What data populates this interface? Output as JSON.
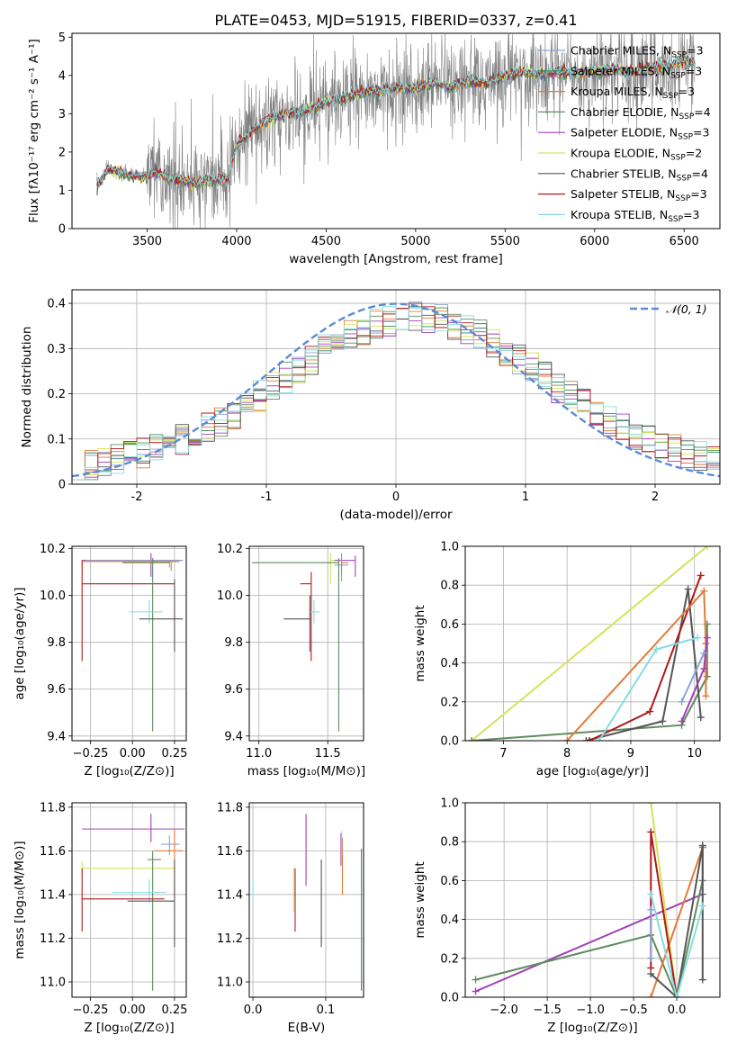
{
  "figure": {
    "title": "PLATE=0453, MJD=51915, FIBERID=0337, z=0.41"
  },
  "colors": {
    "Chabrier MILES": "#8aa4d6",
    "Salpeter MILES": "#2e8b57",
    "Kroupa MILES": "#e07b39",
    "Chabrier ELODIE": "#5e8c5e",
    "Salpeter ELODIE": "#a23fb8",
    "Kroupa ELODIE": "#d4e35a",
    "Chabrier STELIB": "#555555",
    "Salpeter STELIB": "#b01a1a",
    "Kroupa STELIB": "#86dce0",
    "data": "#808080",
    "gauss": "#5b8bd6"
  },
  "chart_data": [
    {
      "id": "spectrum",
      "type": "line",
      "xlabel": "wavelength [Angstrom, rest frame]",
      "ylabel": "Flux [fλ10⁻¹⁷ erg cm⁻² s⁻¹ A⁻¹]",
      "xlim": [
        3080,
        6700
      ],
      "ylim": [
        0,
        5.1
      ],
      "xticks": [
        3500,
        4000,
        4500,
        5000,
        5500,
        6000,
        6500
      ],
      "yticks": [
        0,
        1,
        2,
        3,
        4,
        5
      ],
      "grid": false,
      "legend_position": "top-right",
      "legend": [
        {
          "label": "Chabrier MILES, N",
          "sub": "SSP",
          "tail": "=3",
          "model": "Chabrier MILES"
        },
        {
          "label": "Salpeter MILES, N",
          "sub": "SSP",
          "tail": "=3",
          "model": "Salpeter MILES"
        },
        {
          "label": "Kroupa MILES, N",
          "sub": "SSP",
          "tail": "=3",
          "model": "Kroupa MILES"
        },
        {
          "label": "Chabrier ELODIE, N",
          "sub": "SSP",
          "tail": "=4",
          "model": "Chabrier ELODIE"
        },
        {
          "label": "Salpeter ELODIE, N",
          "sub": "SSP",
          "tail": "=3",
          "model": "Salpeter ELODIE"
        },
        {
          "label": "Kroupa ELODIE, N",
          "sub": "SSP",
          "tail": "=2",
          "model": "Kroupa ELODIE"
        },
        {
          "label": "Chabrier STELIB, N",
          "sub": "SSP",
          "tail": "=4",
          "model": "Chabrier STELIB"
        },
        {
          "label": "Salpeter STELIB, N",
          "sub": "SSP",
          "tail": "=3",
          "model": "Salpeter STELIB"
        },
        {
          "label": "Kroupa STELIB, N",
          "sub": "SSP",
          "tail": "=3",
          "model": "Kroupa STELIB"
        }
      ],
      "model_continuum": {
        "x": [
          3220,
          3280,
          3350,
          3450,
          3550,
          3650,
          3750,
          3850,
          3950,
          4000,
          4100,
          4200,
          4300,
          4400,
          4500,
          4600,
          4700,
          4800,
          4900,
          5000,
          5100,
          5200,
          5300,
          5400,
          5500,
          5600,
          5700,
          5800,
          5900,
          6000,
          6100,
          6200,
          6300,
          6400,
          6500
        ],
        "y": [
          1.1,
          1.55,
          1.45,
          1.35,
          1.45,
          1.3,
          1.2,
          1.25,
          1.3,
          2.2,
          2.6,
          2.9,
          3.0,
          3.1,
          3.3,
          3.4,
          3.55,
          3.6,
          3.7,
          3.65,
          3.8,
          3.7,
          3.85,
          3.8,
          4.0,
          4.1,
          4.0,
          4.1,
          4.05,
          4.1,
          4.15,
          4.1,
          4.2,
          4.25,
          4.35
        ]
      },
      "data_start": 3220,
      "data_end": 6560
    },
    {
      "id": "residuals",
      "type": "histogram",
      "xlabel": "(data-model)/error",
      "ylabel": "Normed distribution",
      "xlim": [
        -2.5,
        2.5
      ],
      "ylim": [
        0,
        0.43
      ],
      "xticks": [
        -2,
        -1,
        0,
        1,
        2
      ],
      "yticks": [
        0.0,
        0.1,
        0.2,
        0.3,
        0.4
      ],
      "grid": true,
      "legend_position": "top-right",
      "legend": [
        {
          "label": "𝒩(0, 1)",
          "model": "gauss"
        }
      ],
      "bins": {
        "start": -2.5,
        "width": 0.1,
        "count": 50
      }
    },
    {
      "id": "age_vs_Z",
      "type": "errorbar",
      "xlabel": "Z [log₁₀(Z/Z⊙)]",
      "ylabel": "age  [log₁₀(age/yr)]",
      "xlim": [
        -0.36,
        0.32
      ],
      "ylim": [
        9.38,
        10.21
      ],
      "xticks": [
        -0.25,
        0.0,
        0.25
      ],
      "xticklabels": [
        "−0.25",
        "0.00",
        "0.25"
      ],
      "yticks": [
        9.4,
        9.6,
        9.8,
        10.0,
        10.2
      ],
      "yticklabels": [
        "9.4",
        "9.6",
        "9.8",
        "10.0",
        "10.2"
      ],
      "grid": true,
      "points": [
        {
          "model": "Kroupa ELODIE",
          "x": -0.3,
          "xerr": [
            0.0,
            0.58
          ],
          "y": 10.15,
          "yerr": [
            0.05,
            0.0
          ]
        },
        {
          "model": "Salpeter ELODIE",
          "x": 0.11,
          "xerr": [
            0.41,
            0.19
          ],
          "y": 10.15,
          "yerr": [
            0.07,
            0.03
          ]
        },
        {
          "model": "Chabrier MILES",
          "x": 0.22,
          "xerr": [
            0.5,
            0.08
          ],
          "y": 10.15,
          "yerr": [
            0.03,
            0.0
          ]
        },
        {
          "model": "Kroupa MILES",
          "x": 0.23,
          "xerr": [
            0.53,
            0.05
          ],
          "y": 10.145,
          "yerr": [
            0.04,
            0.0
          ]
        },
        {
          "model": "Salpeter STELIB",
          "x": -0.3,
          "xerr": [
            0.0,
            0.55
          ],
          "y": 10.05,
          "yerr": [
            0.33,
            0.1
          ]
        },
        {
          "model": "Chabrier ELODIE",
          "x": 0.12,
          "xerr": [
            0.18,
            0.1
          ],
          "y": 10.14,
          "yerr": [
            0.72,
            0.02
          ]
        },
        {
          "model": "Kroupa STELIB",
          "x": 0.1,
          "xerr": [
            0.12,
            0.08
          ],
          "y": 9.93,
          "yerr": [
            0.05,
            0.05
          ]
        },
        {
          "model": "Chabrier STELIB",
          "x": 0.25,
          "xerr": [
            0.21,
            0.05
          ],
          "y": 9.9,
          "yerr": [
            0.14,
            0.17
          ]
        }
      ]
    },
    {
      "id": "age_vs_mass",
      "type": "errorbar",
      "xlabel": "mass [log₁₀(M/M⊙)]",
      "ylabel": "",
      "xlim": [
        10.93,
        11.76
      ],
      "ylim": [
        9.38,
        10.21
      ],
      "xticks": [
        11.0,
        11.5
      ],
      "xticklabels": [
        "11.0",
        "11.5"
      ],
      "yticks": [
        9.4,
        9.6,
        9.8,
        10.0,
        10.2
      ],
      "yticklabels": [
        "9.4",
        "9.6",
        "9.8",
        "10.0",
        "10.2"
      ],
      "grid": true,
      "points": [
        {
          "model": "Kroupa ELODIE",
          "x": 11.52,
          "xerr": [
            0.0,
            0.06
          ],
          "y": 10.15,
          "yerr": [
            0.1,
            0.03
          ]
        },
        {
          "model": "Salpeter ELODIE",
          "x": 11.7,
          "xerr": [
            0.15,
            0.0
          ],
          "y": 10.15,
          "yerr": [
            0.07,
            0.02
          ]
        },
        {
          "model": "Chabrier MILES",
          "x": 11.6,
          "xerr": [
            0.05,
            0.05
          ],
          "y": 10.13,
          "yerr": [
            0.07,
            0.02
          ]
        },
        {
          "model": "Kroupa MILES",
          "x": 11.6,
          "xerr": [
            0.0,
            0.05
          ],
          "y": 10.14,
          "yerr": [
            0.05,
            0.04
          ]
        },
        {
          "model": "Salpeter STELIB",
          "x": 11.38,
          "xerr": [
            0.08,
            0.0
          ],
          "y": 10.05,
          "yerr": [
            0.33,
            0.05
          ]
        },
        {
          "model": "Chabrier ELODIE",
          "x": 11.58,
          "xerr": [
            0.63,
            0.0
          ],
          "y": 10.14,
          "yerr": [
            0.72,
            0.02
          ]
        },
        {
          "model": "Kroupa STELIB",
          "x": 11.4,
          "xerr": [
            0.03,
            0.04
          ],
          "y": 9.93,
          "yerr": [
            0.05,
            0.05
          ]
        },
        {
          "model": "Chabrier STELIB",
          "x": 11.37,
          "xerr": [
            0.19,
            0.0
          ],
          "y": 9.9,
          "yerr": [
            0.14,
            0.1
          ]
        }
      ]
    },
    {
      "id": "weight_vs_age",
      "type": "line",
      "xlabel": "age  [log₁₀(age/yr)]",
      "ylabel": "mass weight",
      "xlim": [
        6.4,
        10.4
      ],
      "ylim": [
        0.0,
        1.0
      ],
      "xticks": [
        7,
        8,
        9,
        10
      ],
      "xticklabels": [
        "7",
        "8",
        "9",
        "10"
      ],
      "yticks": [
        0.0,
        0.2,
        0.4,
        0.6,
        0.8,
        1.0
      ],
      "yticklabels": [
        "0.0",
        "0.2",
        "0.4",
        "0.6",
        "0.8",
        "1.0"
      ],
      "grid": true,
      "series": [
        {
          "model": "Kroupa ELODIE",
          "x": [
            6.5,
            10.2
          ],
          "y": [
            0.0,
            1.0
          ]
        },
        {
          "model": "Chabrier ELODIE",
          "x": [
            6.5,
            9.8,
            10.2,
            10.2
          ],
          "y": [
            0.0,
            0.08,
            0.33,
            0.6
          ]
        },
        {
          "model": "Chabrier STELIB",
          "x": [
            8.3,
            9.5,
            9.9,
            10.1
          ],
          "y": [
            0.0,
            0.1,
            0.78,
            0.12
          ]
        },
        {
          "model": "Salpeter STELIB",
          "x": [
            8.35,
            9.3,
            10.1
          ],
          "y": [
            0.0,
            0.15,
            0.85
          ]
        },
        {
          "model": "Kroupa MILES",
          "x": [
            8.0,
            10.15,
            10.18,
            10.18
          ],
          "y": [
            0.0,
            0.77,
            0.5,
            0.23
          ]
        },
        {
          "model": "Kroupa STELIB",
          "x": [
            8.5,
            9.4,
            10.05
          ],
          "y": [
            0.0,
            0.47,
            0.53
          ]
        },
        {
          "model": "Salpeter ELODIE",
          "x": [
            9.8,
            10.15,
            10.2
          ],
          "y": [
            0.1,
            0.37,
            0.53
          ]
        },
        {
          "model": "Chabrier MILES",
          "x": [
            9.8,
            10.15
          ],
          "y": [
            0.2,
            0.45
          ]
        }
      ]
    },
    {
      "id": "mass_vs_Z",
      "type": "errorbar",
      "xlabel": "Z [log₁₀(Z/Z⊙)]",
      "ylabel": "mass [log₁₀(M/M⊙)]",
      "xlim": [
        -0.36,
        0.32
      ],
      "ylim": [
        10.93,
        11.82
      ],
      "xticks": [
        -0.25,
        0.0,
        0.25
      ],
      "xticklabels": [
        "−0.25",
        "0.00",
        "0.25"
      ],
      "yticks": [
        11.0,
        11.2,
        11.4,
        11.6,
        11.8
      ],
      "yticklabels": [
        "11.0",
        "11.2",
        "11.4",
        "11.6",
        "11.8"
      ],
      "grid": true,
      "points": [
        {
          "model": "Salpeter ELODIE",
          "x": 0.11,
          "xerr": [
            0.41,
            0.2
          ],
          "y": 11.7,
          "yerr": [
            0.06,
            0.07
          ]
        },
        {
          "model": "Chabrier MILES",
          "x": 0.22,
          "xerr": [
            0.05,
            0.06
          ],
          "y": 11.63,
          "yerr": [
            0.05,
            0.04
          ]
        },
        {
          "model": "Kroupa MILES",
          "x": 0.25,
          "xerr": [
            0.12,
            0.05
          ],
          "y": 11.6,
          "yerr": [
            0.22,
            0.1
          ]
        },
        {
          "model": "Kroupa ELODIE",
          "x": -0.3,
          "xerr": [
            0.0,
            0.55
          ],
          "y": 11.52,
          "yerr": [
            0.03,
            0.03
          ]
        },
        {
          "model": "Chabrier ELODIE",
          "x": 0.12,
          "xerr": [
            0.03,
            0.05
          ],
          "y": 11.56,
          "yerr": [
            0.6,
            0.04
          ]
        },
        {
          "model": "Kroupa STELIB",
          "x": 0.1,
          "xerr": [
            0.22,
            0.1
          ],
          "y": 11.41,
          "yerr": [
            0.05,
            0.06
          ]
        },
        {
          "model": "Salpeter STELIB",
          "x": -0.3,
          "xerr": [
            0.0,
            0.49
          ],
          "y": 11.38,
          "yerr": [
            0.15,
            0.14
          ]
        },
        {
          "model": "Chabrier STELIB",
          "x": 0.25,
          "xerr": [
            0.28,
            0.0
          ],
          "y": 11.37,
          "yerr": [
            0.21,
            0.19
          ]
        }
      ]
    },
    {
      "id": "mass_vs_EBV",
      "type": "errorbar",
      "xlabel": "E(B-V)",
      "ylabel": "",
      "xlim": [
        -0.005,
        0.152
      ],
      "ylim": [
        10.93,
        11.82
      ],
      "xticks": [
        0.0,
        0.1
      ],
      "xticklabels": [
        "0.0",
        "0.1"
      ],
      "yticks": [
        11.0,
        11.2,
        11.4,
        11.6,
        11.8
      ],
      "yticklabels": [
        "11.0",
        "11.2",
        "11.4",
        "11.6",
        "11.8"
      ],
      "grid": true,
      "points": [
        {
          "model": "Kroupa STELIB",
          "x": 0.0,
          "xerr": [
            0.0,
            0.0
          ],
          "y": 11.42,
          "yerr": [
            0.06,
            0.04
          ]
        },
        {
          "model": "Kroupa ELODIE",
          "x": 0.056,
          "xerr": [
            0.0,
            0.0
          ],
          "y": 11.4,
          "yerr": [
            0.08,
            0.12
          ]
        },
        {
          "model": "Salpeter STELIB",
          "x": 0.058,
          "xerr": [
            0.0,
            0.0
          ],
          "y": 11.38,
          "yerr": [
            0.15,
            0.14
          ]
        },
        {
          "model": "Salpeter ELODIE",
          "x": 0.073,
          "xerr": [
            0.0,
            0.0
          ],
          "y": 11.6,
          "yerr": [
            0.16,
            0.17
          ]
        },
        {
          "model": "Chabrier STELIB",
          "x": 0.094,
          "xerr": [
            0.0,
            0.0
          ],
          "y": 11.4,
          "yerr": [
            0.24,
            0.16
          ]
        },
        {
          "model": "Salpeter ELODIE",
          "x": 0.121,
          "xerr": [
            0.0,
            0.0
          ],
          "y": 11.56,
          "yerr": [
            0.03,
            0.12
          ]
        },
        {
          "model": "Kroupa MILES",
          "x": 0.123,
          "xerr": [
            0.0,
            0.0
          ],
          "y": 11.52,
          "yerr": [
            0.12,
            0.14
          ]
        },
        {
          "model": "Kroupa STELIB",
          "x": 0.122,
          "xerr": [
            0.0,
            0.0
          ],
          "y": 11.63,
          "yerr": [
            0.05,
            0.06
          ]
        },
        {
          "model": "Chabrier ELODIE",
          "x": 0.149,
          "xerr": [
            0.0,
            0.0
          ],
          "y": 11.3,
          "yerr": [
            0.34,
            0.31
          ]
        }
      ]
    },
    {
      "id": "weight_vs_Z",
      "type": "line",
      "xlabel": "Z [log₁₀(Z/Z⊙)]",
      "ylabel": "mass weight",
      "xlim": [
        -2.45,
        0.5
      ],
      "ylim": [
        0.0,
        1.0
      ],
      "xticks": [
        -2.0,
        -1.5,
        -1.0,
        -0.5,
        0.0
      ],
      "xticklabels": [
        "−2.0",
        "−1.5",
        "−1.0",
        "−0.5",
        "0.0"
      ],
      "yticks": [
        0.0,
        0.2,
        0.4,
        0.6,
        0.8,
        1.0
      ],
      "yticklabels": [
        "0.0",
        "0.2",
        "0.4",
        "0.6",
        "0.8",
        "1.0"
      ],
      "grid": true,
      "series": [
        {
          "model": "Salpeter ELODIE",
          "x": [
            -2.33,
            0.3
          ],
          "y": [
            0.03,
            0.53
          ]
        },
        {
          "model": "Chabrier ELODIE",
          "x": [
            -2.33,
            -0.3,
            0.0,
            0.3,
            0.3
          ],
          "y": [
            0.09,
            0.32,
            0.0,
            0.6,
            0.78
          ]
        },
        {
          "model": "Kroupa ELODIE",
          "x": [
            -0.3,
            0.0
          ],
          "y": [
            1.0,
            0.0
          ]
        },
        {
          "model": "Kroupa MILES",
          "x": [
            -0.3,
            0.3
          ],
          "y": [
            0.0,
            0.77
          ]
        },
        {
          "model": "Salpeter STELIB",
          "x": [
            -0.3,
            -0.3,
            0.0
          ],
          "y": [
            0.15,
            0.85,
            0.0
          ]
        },
        {
          "model": "Chabrier STELIB",
          "x": [
            -0.3,
            0.0,
            0.3,
            0.3
          ],
          "y": [
            0.12,
            0.0,
            0.78,
            0.09
          ]
        },
        {
          "model": "Kroupa STELIB",
          "x": [
            -0.3,
            0.0,
            0.3
          ],
          "y": [
            0.53,
            0.0,
            0.47
          ]
        },
        {
          "model": "Chabrier MILES",
          "x": [
            -0.3,
            -0.3
          ],
          "y": [
            0.2,
            0.45
          ]
        }
      ]
    }
  ]
}
